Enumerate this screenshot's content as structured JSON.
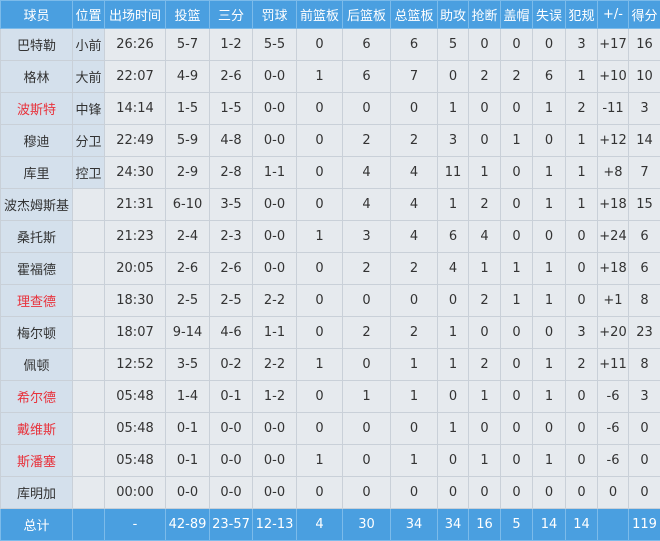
{
  "headers": [
    "球员",
    "位置",
    "出场时间",
    "投篮",
    "三分",
    "罚球",
    "前篮板",
    "后篮板",
    "总篮板",
    "助攻",
    "抢断",
    "盖帽",
    "失误",
    "犯规",
    "+/-",
    "得分"
  ],
  "highlight_color": "#e8323c",
  "header_color": "#4a9fe0",
  "players": [
    {
      "name": "巴特勒",
      "pos": "小前",
      "min": "26:26",
      "fg": "5-7",
      "tp": "1-2",
      "ft": "5-5",
      "oreb": "0",
      "dreb": "6",
      "reb": "6",
      "ast": "5",
      "stl": "0",
      "blk": "0",
      "tov": "0",
      "pf": "3",
      "pm": "+17",
      "pts": "16",
      "red": false
    },
    {
      "name": "格林",
      "pos": "大前",
      "min": "22:07",
      "fg": "4-9",
      "tp": "2-6",
      "ft": "0-0",
      "oreb": "1",
      "dreb": "6",
      "reb": "7",
      "ast": "0",
      "stl": "2",
      "blk": "2",
      "tov": "6",
      "pf": "1",
      "pm": "+10",
      "pts": "10",
      "red": false
    },
    {
      "name": "波斯特",
      "pos": "中锋",
      "min": "14:14",
      "fg": "1-5",
      "tp": "1-5",
      "ft": "0-0",
      "oreb": "0",
      "dreb": "0",
      "reb": "0",
      "ast": "1",
      "stl": "0",
      "blk": "0",
      "tov": "1",
      "pf": "2",
      "pm": "-11",
      "pts": "3",
      "red": true
    },
    {
      "name": "穆迪",
      "pos": "分卫",
      "min": "22:49",
      "fg": "5-9",
      "tp": "4-8",
      "ft": "0-0",
      "oreb": "0",
      "dreb": "2",
      "reb": "2",
      "ast": "3",
      "stl": "0",
      "blk": "1",
      "tov": "0",
      "pf": "1",
      "pm": "+12",
      "pts": "14",
      "red": false
    },
    {
      "name": "库里",
      "pos": "控卫",
      "min": "24:30",
      "fg": "2-9",
      "tp": "2-8",
      "ft": "1-1",
      "oreb": "0",
      "dreb": "4",
      "reb": "4",
      "ast": "11",
      "stl": "1",
      "blk": "0",
      "tov": "1",
      "pf": "1",
      "pm": "+8",
      "pts": "7",
      "red": false
    },
    {
      "name": "波杰姆斯基",
      "pos": "",
      "min": "21:31",
      "fg": "6-10",
      "tp": "3-5",
      "ft": "0-0",
      "oreb": "0",
      "dreb": "4",
      "reb": "4",
      "ast": "1",
      "stl": "2",
      "blk": "0",
      "tov": "1",
      "pf": "1",
      "pm": "+18",
      "pts": "15",
      "red": false
    },
    {
      "name": "桑托斯",
      "pos": "",
      "min": "21:23",
      "fg": "2-4",
      "tp": "2-3",
      "ft": "0-0",
      "oreb": "1",
      "dreb": "3",
      "reb": "4",
      "ast": "6",
      "stl": "4",
      "blk": "0",
      "tov": "0",
      "pf": "0",
      "pm": "+24",
      "pts": "6",
      "red": false
    },
    {
      "name": "霍福德",
      "pos": "",
      "min": "20:05",
      "fg": "2-6",
      "tp": "2-6",
      "ft": "0-0",
      "oreb": "0",
      "dreb": "2",
      "reb": "2",
      "ast": "4",
      "stl": "1",
      "blk": "1",
      "tov": "1",
      "pf": "0",
      "pm": "+18",
      "pts": "6",
      "red": false
    },
    {
      "name": "理查德",
      "pos": "",
      "min": "18:30",
      "fg": "2-5",
      "tp": "2-5",
      "ft": "2-2",
      "oreb": "0",
      "dreb": "0",
      "reb": "0",
      "ast": "0",
      "stl": "2",
      "blk": "1",
      "tov": "1",
      "pf": "0",
      "pm": "+1",
      "pts": "8",
      "red": true
    },
    {
      "name": "梅尔顿",
      "pos": "",
      "min": "18:07",
      "fg": "9-14",
      "tp": "4-6",
      "ft": "1-1",
      "oreb": "0",
      "dreb": "2",
      "reb": "2",
      "ast": "1",
      "stl": "0",
      "blk": "0",
      "tov": "0",
      "pf": "3",
      "pm": "+20",
      "pts": "23",
      "red": false
    },
    {
      "name": "佩顿",
      "pos": "",
      "min": "12:52",
      "fg": "3-5",
      "tp": "0-2",
      "ft": "2-2",
      "oreb": "1",
      "dreb": "0",
      "reb": "1",
      "ast": "1",
      "stl": "2",
      "blk": "0",
      "tov": "1",
      "pf": "2",
      "pm": "+11",
      "pts": "8",
      "red": false
    },
    {
      "name": "希尔德",
      "pos": "",
      "min": "05:48",
      "fg": "1-4",
      "tp": "0-1",
      "ft": "1-2",
      "oreb": "0",
      "dreb": "1",
      "reb": "1",
      "ast": "0",
      "stl": "1",
      "blk": "0",
      "tov": "1",
      "pf": "0",
      "pm": "-6",
      "pts": "3",
      "red": true
    },
    {
      "name": "戴维斯",
      "pos": "",
      "min": "05:48",
      "fg": "0-1",
      "tp": "0-0",
      "ft": "0-0",
      "oreb": "0",
      "dreb": "0",
      "reb": "0",
      "ast": "1",
      "stl": "0",
      "blk": "0",
      "tov": "0",
      "pf": "0",
      "pm": "-6",
      "pts": "0",
      "red": true
    },
    {
      "name": "斯潘塞",
      "pos": "",
      "min": "05:48",
      "fg": "0-1",
      "tp": "0-0",
      "ft": "0-0",
      "oreb": "1",
      "dreb": "0",
      "reb": "1",
      "ast": "0",
      "stl": "1",
      "blk": "0",
      "tov": "1",
      "pf": "0",
      "pm": "-6",
      "pts": "0",
      "red": true
    },
    {
      "name": "库明加",
      "pos": "",
      "min": "00:00",
      "fg": "0-0",
      "tp": "0-0",
      "ft": "0-0",
      "oreb": "0",
      "dreb": "0",
      "reb": "0",
      "ast": "0",
      "stl": "0",
      "blk": "0",
      "tov": "0",
      "pf": "0",
      "pm": "0",
      "pts": "0",
      "red": false
    }
  ],
  "total": {
    "name": "总计",
    "pos": "",
    "min": "-",
    "fg": "42-89",
    "tp": "23-57",
    "ft": "12-13",
    "oreb": "4",
    "dreb": "30",
    "reb": "34",
    "ast": "34",
    "stl": "16",
    "blk": "5",
    "tov": "14",
    "pf": "14",
    "pm": "",
    "pts": "119"
  }
}
